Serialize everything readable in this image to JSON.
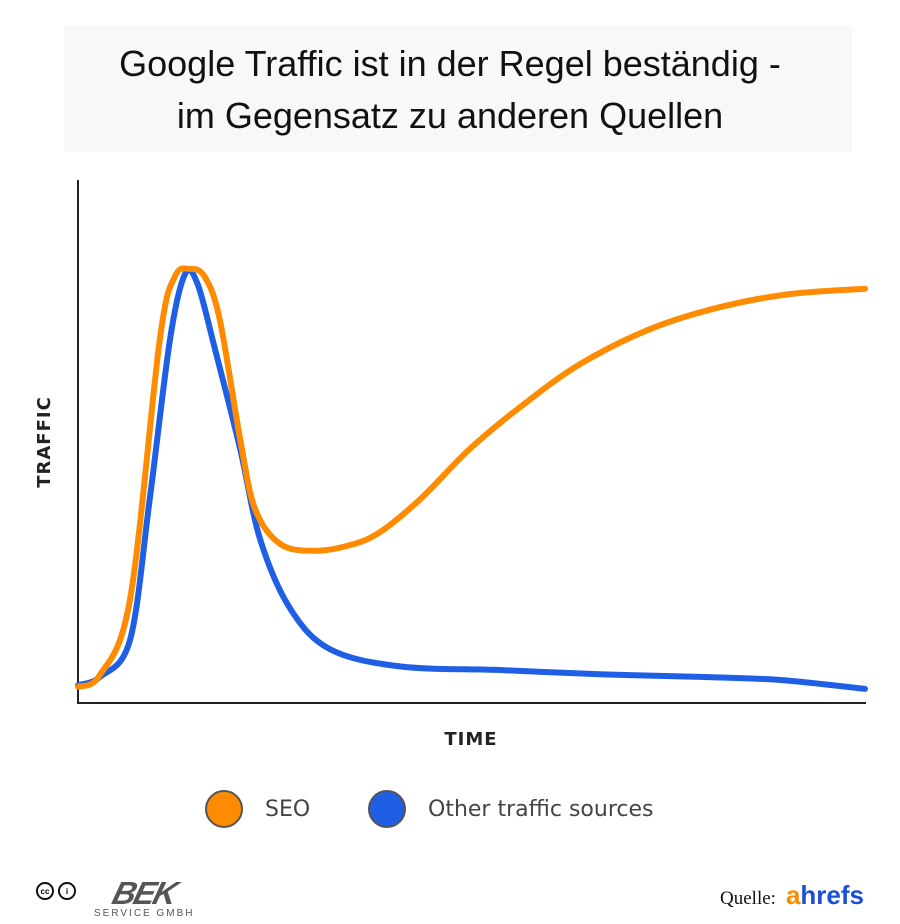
{
  "chart_data": {
    "type": "line",
    "title": "Google Traffic ist in der Regel beständig - im Gegensatz zu anderen Quellen",
    "title_lines": [
      "Google Traffic ist in der Regel beständig -",
      "im Gegensatz zu anderen Quellen"
    ],
    "xlabel": "TIME",
    "ylabel": "TRAFFIC",
    "xlim": [
      0,
      100
    ],
    "ylim": [
      0,
      100
    ],
    "grid": false,
    "legend_position": "bottom",
    "series": [
      {
        "name": "SEO",
        "color": "#ff8c00",
        "x": [
          0,
          2.8,
          6.6,
          10.4,
          12.3,
          14.2,
          16.1,
          18.0,
          20.6,
          22.5,
          25.7,
          30.1,
          34.6,
          38.4,
          43.5,
          49.8,
          56.2,
          63.8,
          72.7,
          81.6,
          90.5,
          100
        ],
        "y": [
          3.1,
          5.4,
          19.7,
          69.6,
          81.5,
          83.0,
          81.5,
          73.4,
          50.5,
          37.1,
          30.4,
          29.1,
          30.2,
          32.7,
          39.0,
          48.6,
          56.6,
          64.8,
          71.5,
          75.7,
          78.2,
          79.2
        ]
      },
      {
        "name": "Other traffic sources",
        "color": "#1f5fe6",
        "x": [
          0,
          2.8,
          6.6,
          9.1,
          11.7,
          13.6,
          15.2,
          17.4,
          20.6,
          23.1,
          26.9,
          32.0,
          40.9,
          53.6,
          66.3,
          79.0,
          89.2,
          100
        ],
        "y": [
          3.4,
          5.0,
          12.0,
          38.8,
          69.6,
          82.0,
          80.1,
          67.7,
          48.6,
          31.5,
          18.2,
          10.3,
          7.0,
          6.3,
          5.5,
          5.0,
          4.4,
          2.7
        ]
      }
    ]
  },
  "footer": {
    "brand": "BEK",
    "brand_sub": "SERVICE GMBH",
    "license_icons": [
      "cc-icon",
      "attribution-icon"
    ],
    "source_label": "Quelle:",
    "source_logo": "ahrefs"
  }
}
